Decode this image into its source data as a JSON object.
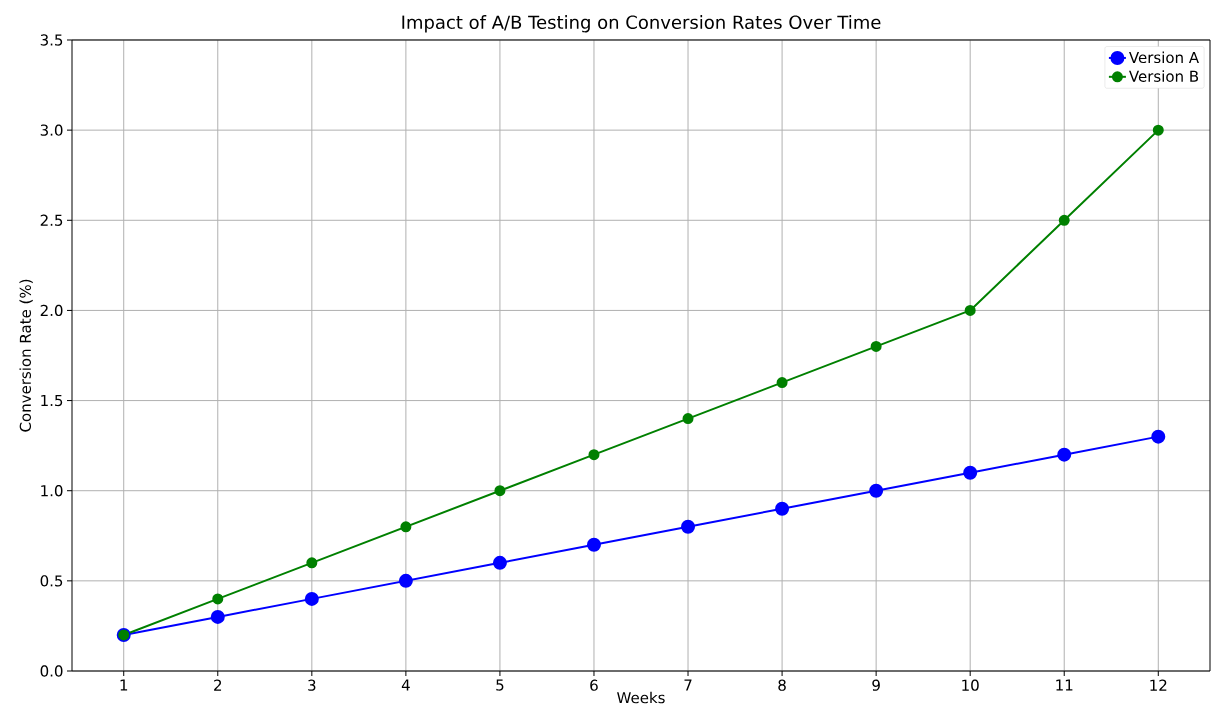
{
  "chart_data": {
    "type": "line",
    "title": "Impact of A/B Testing on Conversion Rates Over Time",
    "xlabel": "Weeks",
    "ylabel": "Conversion Rate (%)",
    "x": [
      1,
      2,
      3,
      4,
      5,
      6,
      7,
      8,
      9,
      10,
      11,
      12
    ],
    "series": [
      {
        "name": "Version A",
        "color": "#0000ff",
        "values": [
          0.2,
          0.3,
          0.4,
          0.5,
          0.6,
          0.7,
          0.8,
          0.9,
          1.0,
          1.1,
          1.2,
          1.3
        ]
      },
      {
        "name": "Version B",
        "color": "#008000",
        "values": [
          0.2,
          0.4,
          0.6,
          0.8,
          1.0,
          1.2,
          1.4,
          1.6,
          1.8,
          2.0,
          2.5,
          3.0
        ]
      }
    ],
    "xlim": [
      0.45,
      12.55
    ],
    "ylim": [
      0,
      3.5
    ],
    "xticks": [
      1,
      2,
      3,
      4,
      5,
      6,
      7,
      8,
      9,
      10,
      11,
      12
    ],
    "yticks": [
      {
        "value": 0,
        "label": "0.0"
      },
      {
        "value": 0.5,
        "label": "0.5"
      },
      {
        "value": 1,
        "label": "1.0"
      },
      {
        "value": 1.5,
        "label": "1.5"
      },
      {
        "value": 2,
        "label": "2.0"
      },
      {
        "value": 2.5,
        "label": "2.5"
      },
      {
        "value": 3,
        "label": "3.0"
      },
      {
        "value": 3.5,
        "label": "3.5"
      }
    ],
    "grid": true,
    "legend": "top right",
    "marker": "circle",
    "line_style": "solid"
  }
}
